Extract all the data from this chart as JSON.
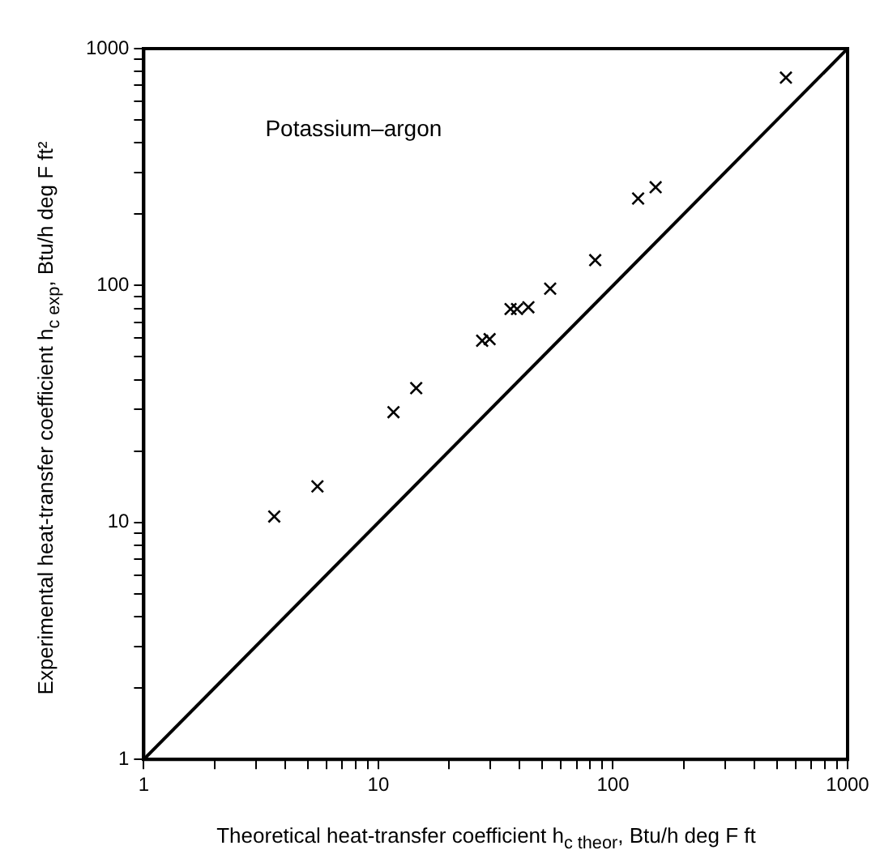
{
  "chart_data": {
    "type": "scatter",
    "xlabel": "Theoretical heat-transfer coefficient h$_{c theor}$,    Btu/h deg F ft",
    "ylabel": "Experimental heat-transfer coefficient h$_{c exp}$,    Btu/h deg F ft²",
    "annotations": [
      "Potassium–argon"
    ],
    "log": "xy",
    "grid": false,
    "legend": false,
    "marker": "cross",
    "xlim": [
      1,
      1000
    ],
    "ylim": [
      1,
      1000
    ],
    "xticks": [
      1,
      {
        "value": 2,
        "label": null
      },
      {
        "value": 3,
        "label": null
      },
      {
        "value": 4,
        "label": null
      },
      {
        "value": 5,
        "label": null
      },
      {
        "value": 6,
        "label": null
      },
      {
        "value": 7,
        "label": null
      },
      {
        "value": 8,
        "label": null
      },
      {
        "value": 9,
        "label": null
      },
      10,
      {
        "value": 20,
        "label": null
      },
      {
        "value": 30,
        "label": null
      },
      {
        "value": 40,
        "label": null
      },
      {
        "value": 50,
        "label": null
      },
      {
        "value": 60,
        "label": null
      },
      {
        "value": 70,
        "label": null
      },
      {
        "value": 80,
        "label": null
      },
      {
        "value": 90,
        "label": null
      },
      100,
      {
        "value": 200,
        "label": null
      },
      {
        "value": 300,
        "label": null
      },
      {
        "value": 400,
        "label": null
      },
      {
        "value": 500,
        "label": null
      },
      {
        "value": 600,
        "label": null
      },
      {
        "value": 700,
        "label": null
      },
      {
        "value": 800,
        "label": null
      },
      {
        "value": 900,
        "label": null
      },
      1000
    ],
    "yticks": [
      1,
      {
        "value": 2,
        "label": null
      },
      {
        "value": 3,
        "label": null
      },
      {
        "value": 4,
        "label": null
      },
      {
        "value": 5,
        "label": null
      },
      {
        "value": 6,
        "label": null
      },
      {
        "value": 7,
        "label": null
      },
      {
        "value": 8,
        "label": null
      },
      {
        "value": 9,
        "label": null
      },
      10,
      {
        "value": 20,
        "label": null
      },
      {
        "value": 30,
        "label": null
      },
      {
        "value": 40,
        "label": null
      },
      {
        "value": 50,
        "label": null
      },
      {
        "value": 60,
        "label": null
      },
      {
        "value": 70,
        "label": null
      },
      {
        "value": 80,
        "label": null
      },
      {
        "value": 90,
        "label": null
      },
      100,
      {
        "value": 200,
        "label": null
      },
      {
        "value": 300,
        "label": null
      },
      {
        "value": 400,
        "label": null
      },
      {
        "value": 500,
        "label": null
      },
      {
        "value": 600,
        "label": null
      },
      {
        "value": 700,
        "label": null
      },
      {
        "value": 800,
        "label": null
      },
      {
        "value": 900,
        "label": null
      },
      1000
    ],
    "series": [
      {
        "type": "scatter",
        "color": "#000000",
        "x": [
          3.6,
          5.5,
          11.6,
          14.5,
          27.7,
          29.8,
          36.6,
          39,
          43.6,
          54,
          84,
          128,
          152,
          546
        ],
        "values": [
          10.6,
          14.2,
          29.2,
          36.9,
          58.5,
          59.4,
          79.6,
          79.6,
          81,
          97,
          128,
          233,
          260,
          754
        ]
      },
      {
        "type": "line",
        "color": "#000000",
        "marker": "none",
        "x": [
          1,
          1000
        ],
        "values": [
          1,
          1000
        ]
      }
    ]
  }
}
